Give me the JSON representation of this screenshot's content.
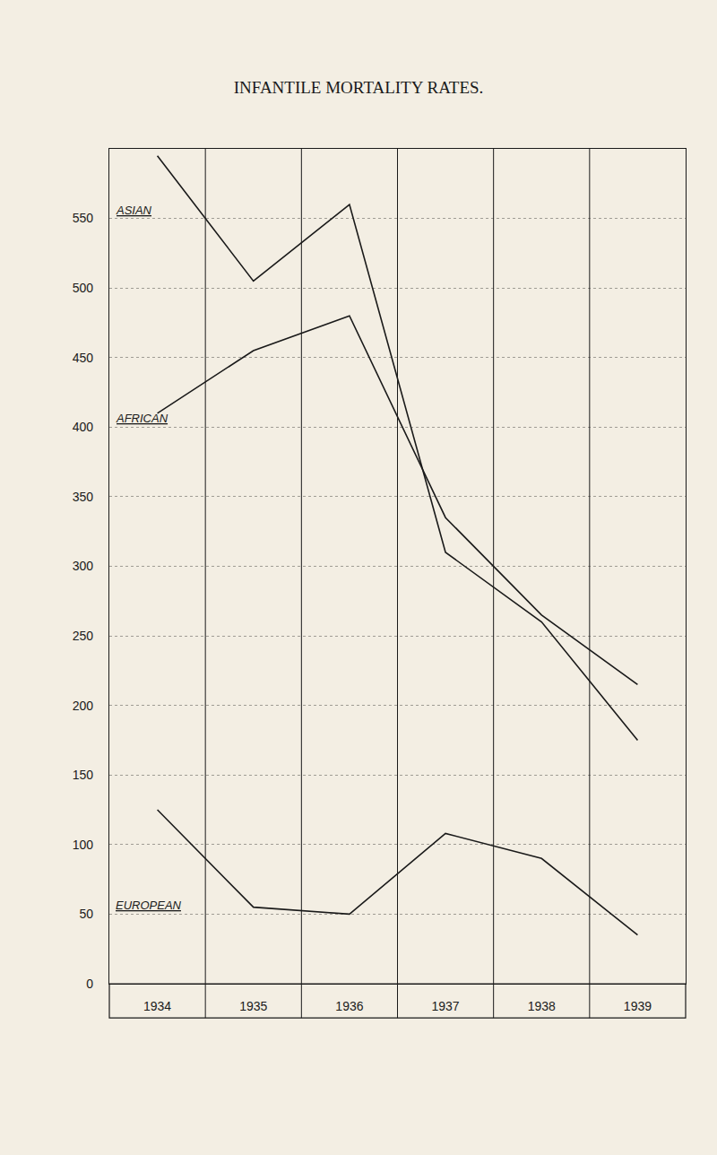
{
  "chart_data": {
    "type": "line",
    "title": "INFANTILE MORTALITY RATES.",
    "categories": [
      "1934",
      "1935",
      "1936",
      "1937",
      "1938",
      "1939"
    ],
    "series": [
      {
        "name": "ASIAN",
        "color": "#1a1a1a",
        "values": [
          595,
          505,
          560,
          310,
          260,
          175
        ],
        "label_y": 550
      },
      {
        "name": "AFRICAN",
        "color": "#1a1a1a",
        "values": [
          410,
          455,
          480,
          335,
          265,
          215
        ],
        "label_y": 400
      },
      {
        "name": "EUROPEAN",
        "color": "#1a1a1a",
        "values": [
          125,
          55,
          50,
          108,
          90,
          35
        ],
        "label_y": 50
      }
    ],
    "ylim": [
      0,
      600
    ],
    "yticks": [
      0,
      50,
      100,
      150,
      200,
      250,
      300,
      350,
      400,
      450,
      500,
      550
    ],
    "grid": true
  }
}
